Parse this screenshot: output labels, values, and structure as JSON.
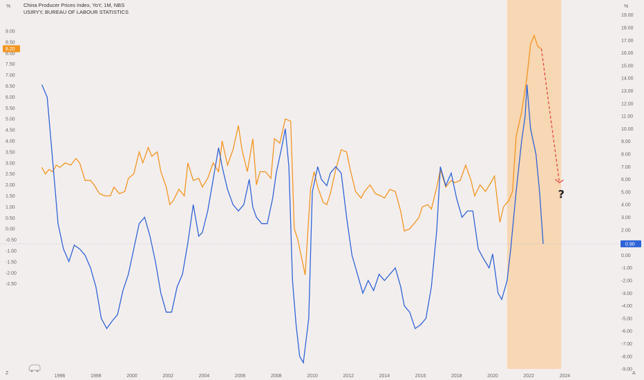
{
  "legend": {
    "line1": "China Producer Prices Index, YoY, 1M, NBS",
    "line2": "USIRYY, BUREAU OF LABOUR STATISTICS"
  },
  "units": {
    "left": "%",
    "right": "%"
  },
  "markers": {
    "left_axis_flag": "8.20",
    "right_axis_flag": "0.90",
    "question": "?",
    "corner_left": "Z",
    "corner_right": "A"
  },
  "colors": {
    "orange": "#f2951f",
    "blue": "#2e63d6",
    "shade": "#f7d7b4",
    "arrow": "#e53a3a",
    "flag_orange": "#f2951f",
    "flag_blue": "#2e63d6"
  },
  "chart_data": {
    "type": "line",
    "x_ticks": [
      "1996",
      "1998",
      "2000",
      "2002",
      "2004",
      "2006",
      "2008",
      "2010",
      "2012",
      "2014",
      "2016",
      "2018",
      "2020",
      "2022",
      "2024"
    ],
    "left_axis": {
      "ylim": [
        -2.5,
        9.5
      ],
      "ticks": [
        "9.00",
        "8.50",
        "8.00",
        "7.50",
        "7.00",
        "6.50",
        "6.00",
        "5.50",
        "5.00",
        "4.50",
        "4.00",
        "3.50",
        "3.00",
        "2.50",
        "2.00",
        "1.50",
        "1.00",
        "0.50",
        "0.00",
        "-0.50",
        "-1.00",
        "-1.50",
        "-2.00",
        "-2.50"
      ]
    },
    "right_axis": {
      "ylim": [
        -10,
        19.5
      ],
      "ticks": [
        "19.00",
        "18.00",
        "17.00",
        "16.00",
        "15.00",
        "14.00",
        "13.00",
        "12.00",
        "11.00",
        "10.00",
        "9.00",
        "8.00",
        "7.00",
        "6.00",
        "5.00",
        "4.00",
        "3.00",
        "2.00",
        "1.00",
        "0.00",
        "-1.00",
        "-2.00",
        "-3.00",
        "-4.00",
        "-5.00",
        "-6.00",
        "-7.00",
        "-8.00",
        "-9.00",
        "-10.00"
      ]
    },
    "shaded_range_years": [
      2020.8,
      2023.8
    ],
    "series": [
      {
        "axis": "left",
        "points": [
          [
            1995.0,
            2.8
          ],
          [
            1995.2,
            2.5
          ],
          [
            1995.4,
            2.7
          ],
          [
            1995.6,
            2.6
          ],
          [
            1995.8,
            2.9
          ],
          [
            1996.0,
            2.8
          ],
          [
            1996.3,
            3.0
          ],
          [
            1996.6,
            2.9
          ],
          [
            1996.9,
            3.2
          ],
          [
            1997.1,
            3.0
          ],
          [
            1997.4,
            2.2
          ],
          [
            1997.7,
            2.2
          ],
          [
            1997.9,
            2.0
          ],
          [
            1998.2,
            1.6
          ],
          [
            1998.5,
            1.5
          ],
          [
            1998.8,
            1.5
          ],
          [
            1999.0,
            1.9
          ],
          [
            1999.3,
            1.6
          ],
          [
            1999.6,
            1.7
          ],
          [
            1999.8,
            2.3
          ],
          [
            2000.1,
            2.5
          ],
          [
            2000.4,
            3.5
          ],
          [
            2000.6,
            3.0
          ],
          [
            2000.9,
            3.7
          ],
          [
            2001.1,
            3.3
          ],
          [
            2001.4,
            3.5
          ],
          [
            2001.6,
            2.6
          ],
          [
            2001.9,
            1.9
          ],
          [
            2002.1,
            1.1
          ],
          [
            2002.3,
            1.3
          ],
          [
            2002.6,
            1.8
          ],
          [
            2002.9,
            1.5
          ],
          [
            2003.1,
            3.0
          ],
          [
            2003.4,
            2.2
          ],
          [
            2003.7,
            2.3
          ],
          [
            2003.9,
            1.9
          ],
          [
            2004.2,
            2.3
          ],
          [
            2004.5,
            3.0
          ],
          [
            2004.8,
            2.6
          ],
          [
            2005.0,
            4.0
          ],
          [
            2005.3,
            2.9
          ],
          [
            2005.6,
            3.6
          ],
          [
            2005.9,
            4.7
          ],
          [
            2006.1,
            3.6
          ],
          [
            2006.4,
            2.6
          ],
          [
            2006.7,
            4.1
          ],
          [
            2006.9,
            2.0
          ],
          [
            2007.1,
            2.6
          ],
          [
            2007.4,
            2.6
          ],
          [
            2007.7,
            2.3
          ],
          [
            2007.9,
            4.1
          ],
          [
            2008.2,
            3.9
          ],
          [
            2008.5,
            5.0
          ],
          [
            2008.8,
            4.9
          ],
          [
            2009.0,
            0.0
          ],
          [
            2009.2,
            -0.5
          ],
          [
            2009.4,
            -1.3
          ],
          [
            2009.6,
            -2.1
          ],
          [
            2009.9,
            1.8
          ],
          [
            2010.1,
            2.6
          ],
          [
            2010.3,
            1.9
          ],
          [
            2010.6,
            1.2
          ],
          [
            2010.8,
            1.1
          ],
          [
            2011.0,
            1.6
          ],
          [
            2011.3,
            2.7
          ],
          [
            2011.6,
            3.6
          ],
          [
            2011.9,
            3.5
          ],
          [
            2012.1,
            2.7
          ],
          [
            2012.4,
            1.7
          ],
          [
            2012.7,
            1.4
          ],
          [
            2012.9,
            1.7
          ],
          [
            2013.2,
            2.0
          ],
          [
            2013.5,
            1.6
          ],
          [
            2013.8,
            1.5
          ],
          [
            2014.0,
            1.4
          ],
          [
            2014.3,
            1.8
          ],
          [
            2014.6,
            1.7
          ],
          [
            2014.9,
            0.8
          ],
          [
            2015.1,
            -0.1
          ],
          [
            2015.4,
            0.0
          ],
          [
            2015.6,
            0.2
          ],
          [
            2015.9,
            0.5
          ],
          [
            2016.1,
            1.0
          ],
          [
            2016.4,
            1.1
          ],
          [
            2016.6,
            0.9
          ],
          [
            2016.9,
            1.9
          ],
          [
            2017.1,
            2.7
          ],
          [
            2017.4,
            1.9
          ],
          [
            2017.7,
            2.2
          ],
          [
            2017.9,
            2.1
          ],
          [
            2018.2,
            2.2
          ],
          [
            2018.5,
            2.9
          ],
          [
            2018.8,
            2.2
          ],
          [
            2019.0,
            1.5
          ],
          [
            2019.3,
            2.0
          ],
          [
            2019.6,
            1.7
          ],
          [
            2019.9,
            2.1
          ],
          [
            2020.1,
            2.4
          ],
          [
            2020.4,
            0.3
          ],
          [
            2020.6,
            1.0
          ],
          [
            2020.9,
            1.3
          ],
          [
            2021.1,
            1.7
          ],
          [
            2021.3,
            4.2
          ],
          [
            2021.6,
            5.3
          ],
          [
            2021.9,
            6.9
          ],
          [
            2022.1,
            8.4
          ],
          [
            2022.3,
            8.8
          ],
          [
            2022.5,
            8.3
          ],
          [
            2022.7,
            8.2
          ]
        ]
      },
      {
        "axis": "right",
        "points": [
          [
            1995.0,
            13.5
          ],
          [
            1995.3,
            12.5
          ],
          [
            1995.6,
            7.5
          ],
          [
            1995.9,
            2.5
          ],
          [
            1996.2,
            0.5
          ],
          [
            1996.5,
            -0.5
          ],
          [
            1996.8,
            0.8
          ],
          [
            1997.1,
            0.5
          ],
          [
            1997.4,
            0.0
          ],
          [
            1997.7,
            -1.0
          ],
          [
            1998.0,
            -2.5
          ],
          [
            1998.3,
            -5.0
          ],
          [
            1998.6,
            -5.8
          ],
          [
            1998.9,
            -5.2
          ],
          [
            1999.2,
            -4.7
          ],
          [
            1999.5,
            -2.8
          ],
          [
            1999.8,
            -1.5
          ],
          [
            2000.1,
            0.5
          ],
          [
            2000.4,
            2.5
          ],
          [
            2000.7,
            3.0
          ],
          [
            2001.0,
            1.5
          ],
          [
            2001.3,
            -0.5
          ],
          [
            2001.6,
            -3.0
          ],
          [
            2001.9,
            -4.5
          ],
          [
            2002.2,
            -4.5
          ],
          [
            2002.5,
            -2.5
          ],
          [
            2002.8,
            -1.5
          ],
          [
            2003.1,
            1.0
          ],
          [
            2003.4,
            4.0
          ],
          [
            2003.7,
            1.5
          ],
          [
            2003.9,
            1.8
          ],
          [
            2004.2,
            3.5
          ],
          [
            2004.5,
            6.0
          ],
          [
            2004.8,
            8.5
          ],
          [
            2005.0,
            7.0
          ],
          [
            2005.3,
            5.2
          ],
          [
            2005.6,
            4.0
          ],
          [
            2005.9,
            3.5
          ],
          [
            2006.2,
            4.0
          ],
          [
            2006.5,
            6.0
          ],
          [
            2006.7,
            3.8
          ],
          [
            2006.9,
            3.0
          ],
          [
            2007.2,
            2.5
          ],
          [
            2007.5,
            2.5
          ],
          [
            2007.8,
            4.5
          ],
          [
            2008.0,
            6.5
          ],
          [
            2008.3,
            8.5
          ],
          [
            2008.5,
            10.0
          ],
          [
            2008.7,
            7.0
          ],
          [
            2008.9,
            -2.0
          ],
          [
            2009.1,
            -5.5
          ],
          [
            2009.3,
            -8.0
          ],
          [
            2009.5,
            -8.5
          ],
          [
            2009.8,
            -5.0
          ],
          [
            2010.0,
            5.0
          ],
          [
            2010.3,
            7.0
          ],
          [
            2010.5,
            6.0
          ],
          [
            2010.8,
            5.5
          ],
          [
            2011.0,
            6.5
          ],
          [
            2011.3,
            7.0
          ],
          [
            2011.6,
            6.5
          ],
          [
            2011.9,
            3.0
          ],
          [
            2012.2,
            0.0
          ],
          [
            2012.5,
            -1.5
          ],
          [
            2012.8,
            -3.0
          ],
          [
            2013.1,
            -2.0
          ],
          [
            2013.4,
            -2.8
          ],
          [
            2013.7,
            -1.5
          ],
          [
            2014.0,
            -2.0
          ],
          [
            2014.3,
            -1.5
          ],
          [
            2014.6,
            -1.0
          ],
          [
            2014.9,
            -2.5
          ],
          [
            2015.1,
            -4.0
          ],
          [
            2015.4,
            -4.5
          ],
          [
            2015.7,
            -5.8
          ],
          [
            2016.0,
            -5.5
          ],
          [
            2016.3,
            -5.0
          ],
          [
            2016.6,
            -2.5
          ],
          [
            2016.9,
            2.0
          ],
          [
            2017.1,
            7.0
          ],
          [
            2017.4,
            5.5
          ],
          [
            2017.7,
            6.5
          ],
          [
            2018.0,
            4.5
          ],
          [
            2018.3,
            3.0
          ],
          [
            2018.6,
            3.5
          ],
          [
            2018.9,
            3.5
          ],
          [
            2019.2,
            0.5
          ],
          [
            2019.5,
            -0.3
          ],
          [
            2019.8,
            -1.0
          ],
          [
            2020.0,
            0.1
          ],
          [
            2020.3,
            -3.0
          ],
          [
            2020.5,
            -3.5
          ],
          [
            2020.8,
            -2.0
          ],
          [
            2021.0,
            0.5
          ],
          [
            2021.3,
            5.0
          ],
          [
            2021.6,
            9.0
          ],
          [
            2021.8,
            11.0
          ],
          [
            2021.9,
            13.5
          ],
          [
            2022.1,
            10.0
          ],
          [
            2022.4,
            8.0
          ],
          [
            2022.6,
            5.0
          ],
          [
            2022.8,
            0.9
          ]
        ]
      }
    ],
    "forecast_arrow": {
      "from": [
        2022.7,
        8.2
      ],
      "to": [
        2023.7,
        2.1
      ]
    }
  }
}
